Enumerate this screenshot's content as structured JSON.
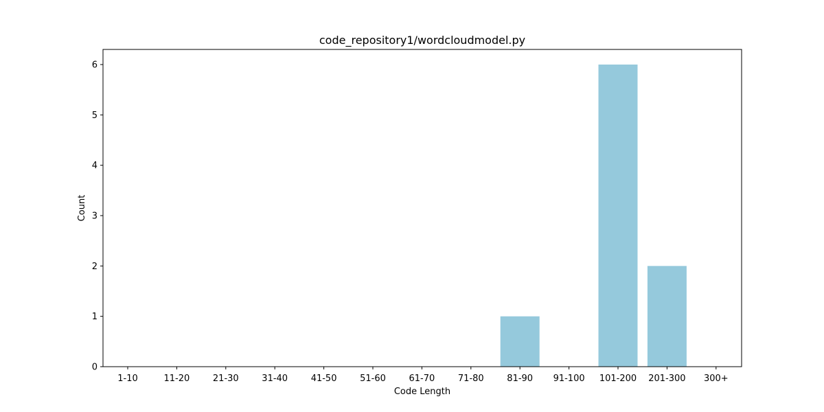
{
  "chart_data": {
    "type": "bar",
    "title": "code_repository1/wordcloudmodel.py",
    "xlabel": "Code Length",
    "ylabel": "Count",
    "categories": [
      "1-10",
      "11-20",
      "21-30",
      "31-40",
      "41-50",
      "51-60",
      "61-70",
      "71-80",
      "81-90",
      "91-100",
      "101-200",
      "201-300",
      "300+"
    ],
    "values": [
      0,
      0,
      0,
      0,
      0,
      0,
      0,
      0,
      1,
      0,
      6,
      2,
      0
    ],
    "ylim": [
      0,
      6.3
    ],
    "yticks": [
      0,
      1,
      2,
      3,
      4,
      5,
      6
    ],
    "bar_color": "#95c9dc",
    "grid": false,
    "legend": "none"
  }
}
